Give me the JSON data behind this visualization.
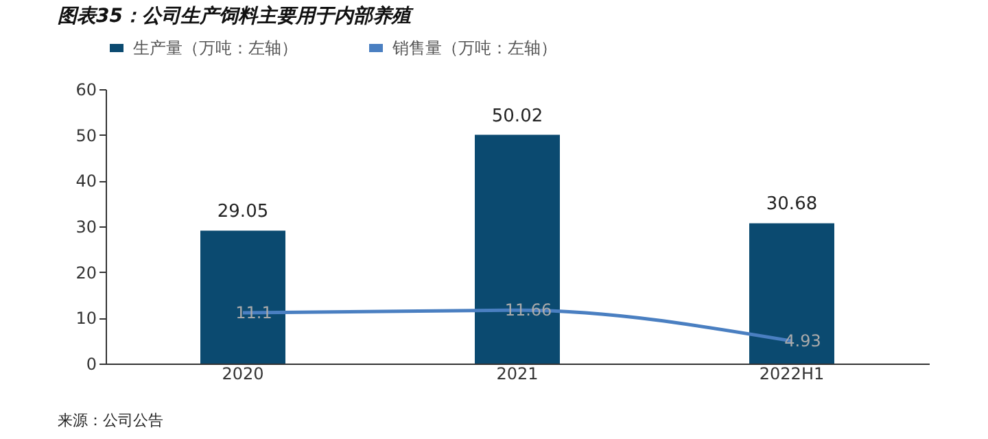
{
  "chart_data": {
    "type": "bar",
    "title": "图表35：公司生产饲料主要用于内部养殖",
    "categories": [
      "2020",
      "2021",
      "2022H1"
    ],
    "series": [
      {
        "name": "生产量（万吨：左轴）",
        "color": "#0b4a70",
        "values": [
          29.05,
          50.02,
          30.68
        ]
      },
      {
        "name": "销售量（万吨：左轴）",
        "type": "line",
        "color": "#4a7fc1",
        "values": [
          11.1,
          11.66,
          4.93
        ]
      }
    ],
    "ylim": [
      0,
      60
    ],
    "yticks": [
      0,
      10,
      20,
      30,
      40,
      50,
      60
    ],
    "data_labels": true,
    "legend": "top",
    "grid": false,
    "annotations": [
      "来源：公司公告"
    ]
  }
}
